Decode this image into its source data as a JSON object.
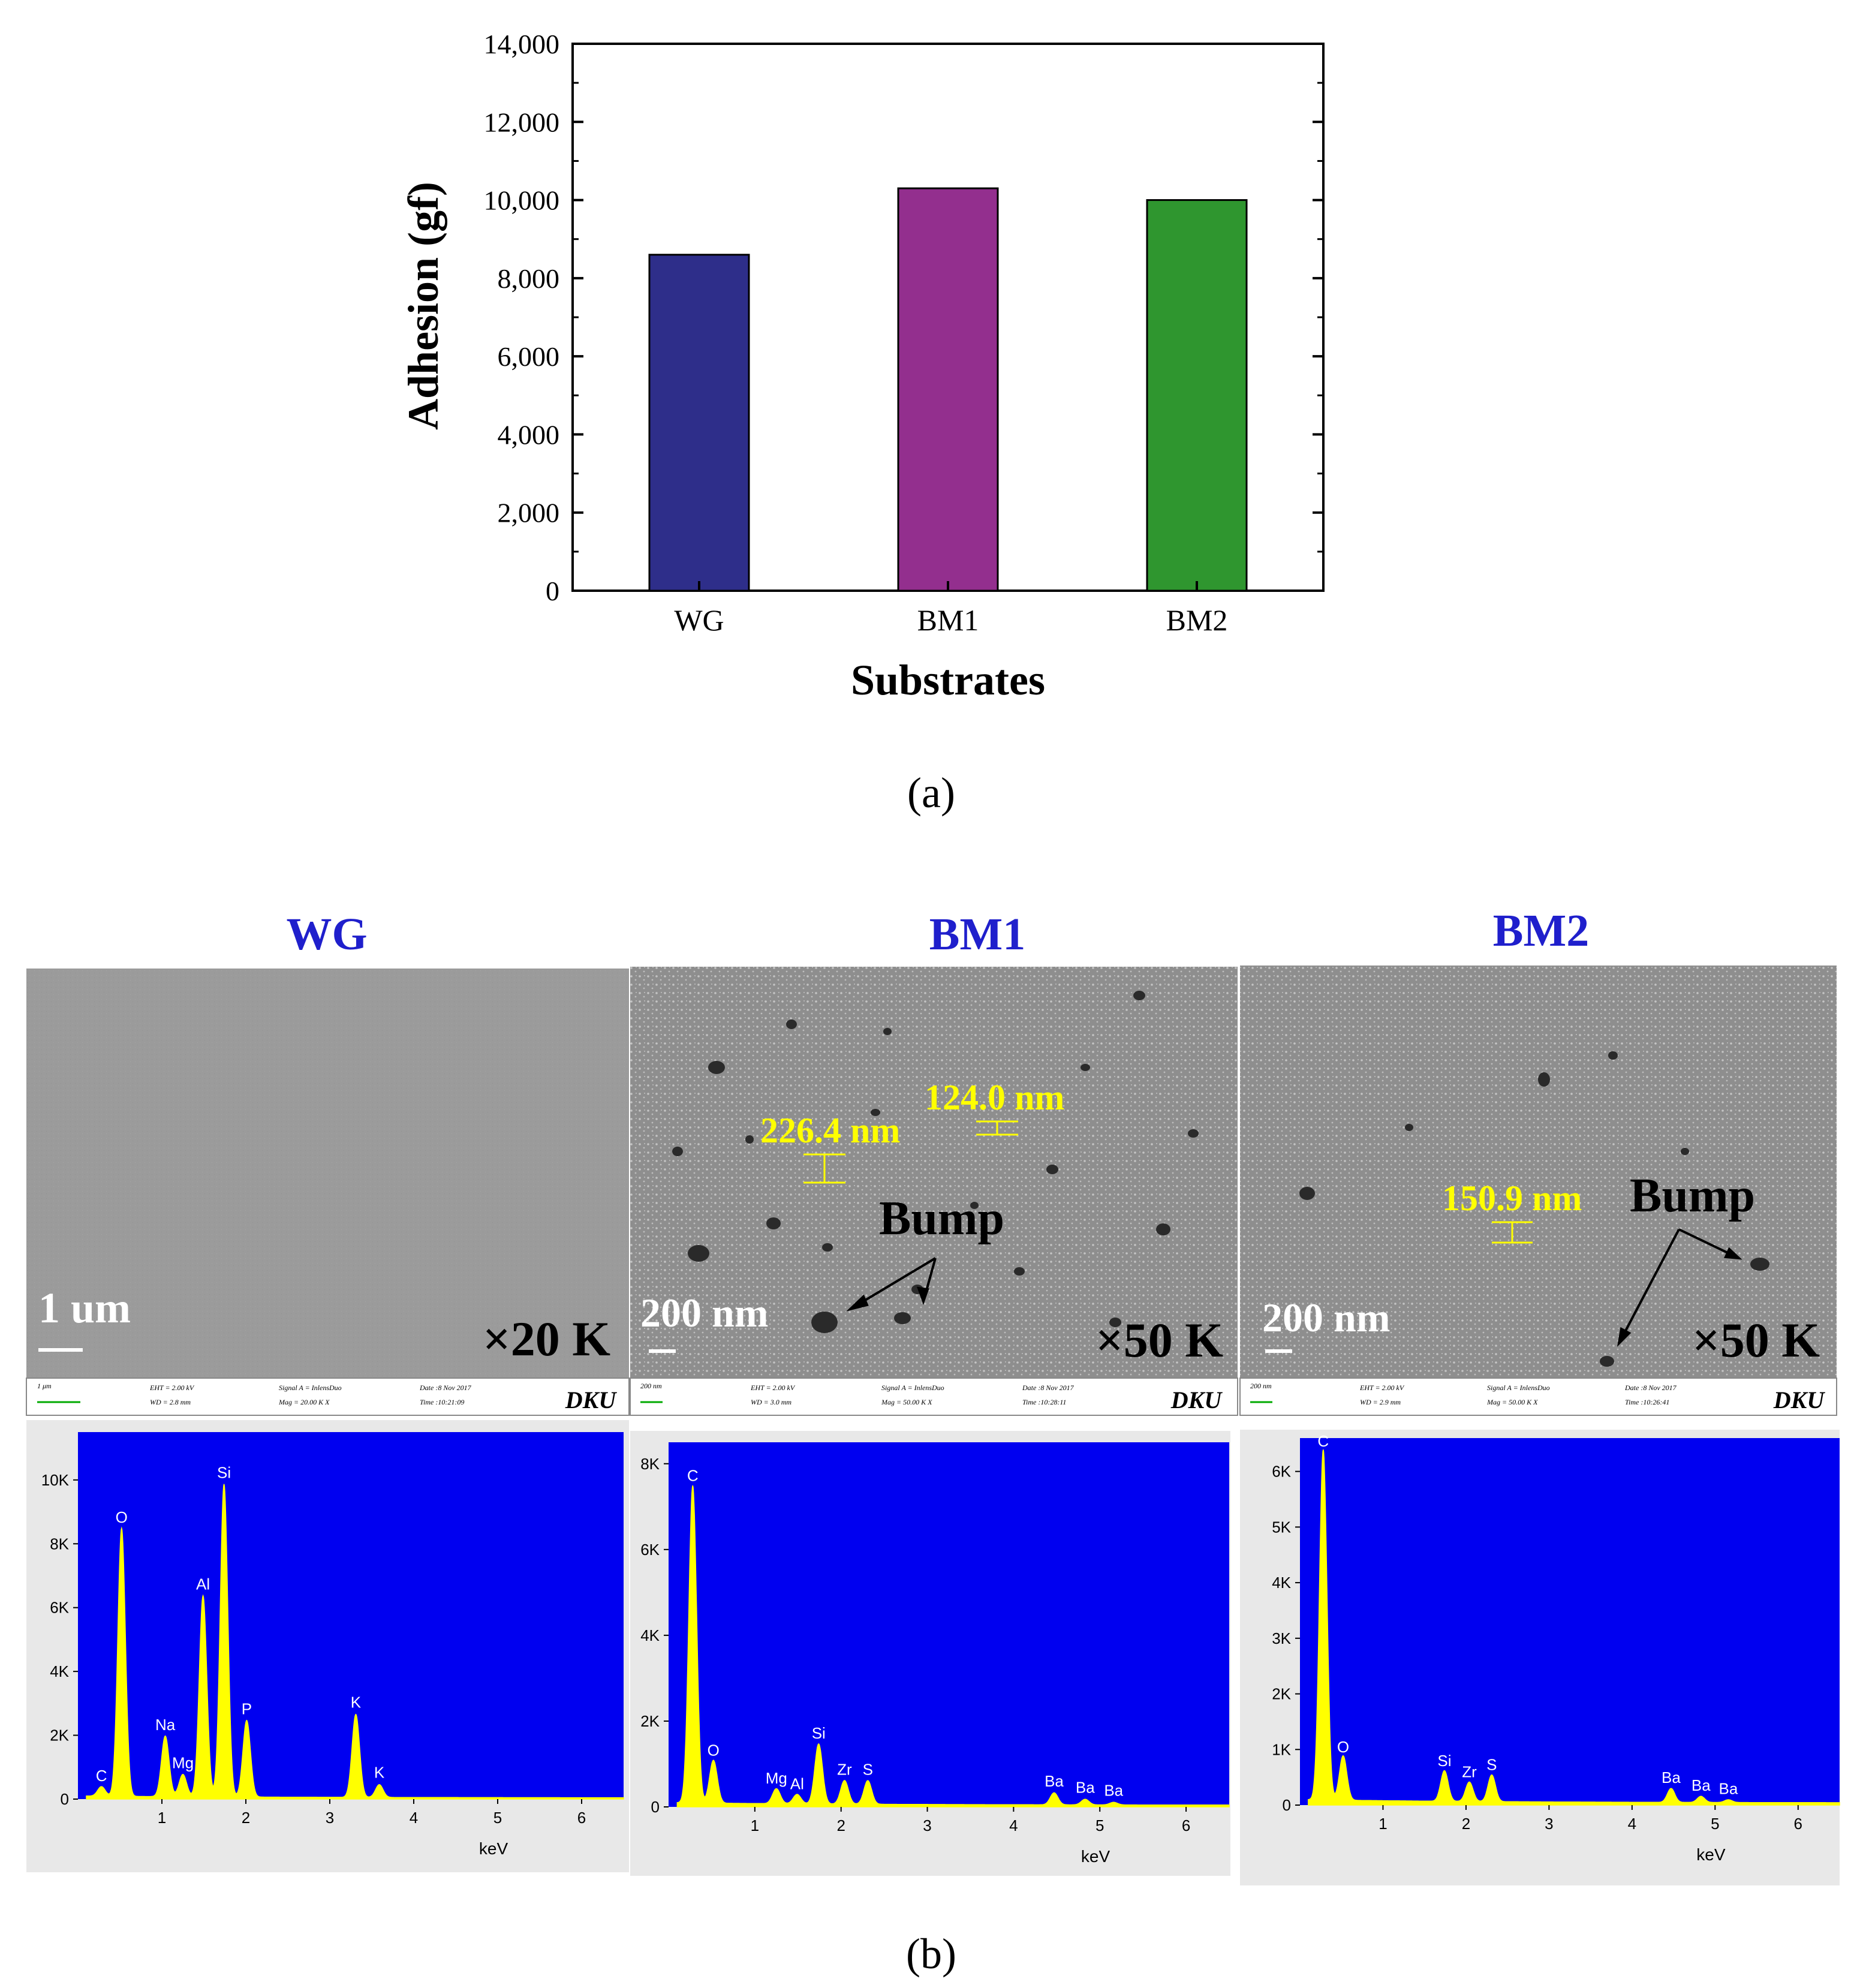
{
  "figure": {
    "caption_a": "(a)",
    "caption_b": "(b)"
  },
  "colors": {
    "wg_bar": "#2e2e8a",
    "bm1_bar": "#932f8e",
    "bm2_bar": "#2f962f",
    "panel_title": "#1f1fcc",
    "edx_bg": "#0000f0",
    "edx_trace": "#ffff00",
    "sem_label": "#ffff00"
  },
  "chart_data": [
    {
      "type": "bar",
      "title": "",
      "xlabel": "Substrates",
      "ylabel": "Adhesion (gf)",
      "categories": [
        "WG",
        "BM1",
        "BM2"
      ],
      "values": [
        8600,
        10300,
        10000
      ],
      "ylim": [
        0,
        14000
      ],
      "yticks": [
        0,
        2000,
        4000,
        6000,
        8000,
        10000,
        12000,
        14000
      ],
      "ytick_labels": [
        "0",
        "2,000",
        "4,000",
        "6,000",
        "8,000",
        "10,000",
        "12,000",
        "14,000"
      ],
      "grid": false
    },
    {
      "type": "line",
      "title": "WG",
      "xlabel": "keV",
      "xlim": [
        0,
        6.5
      ],
      "ylim": [
        0,
        11500
      ],
      "xtick_labels": [
        "1",
        "2",
        "3",
        "4",
        "5",
        "6"
      ],
      "ytick_labels": [
        "0",
        "2K",
        "4K",
        "6K",
        "8K",
        "10K"
      ],
      "peaks": [
        {
          "element": "C",
          "energy": 0.28,
          "counts": 300
        },
        {
          "element": "O",
          "energy": 0.52,
          "counts": 8400
        },
        {
          "element": "Na",
          "energy": 1.04,
          "counts": 1900
        },
        {
          "element": "Mg",
          "energy": 1.25,
          "counts": 700
        },
        {
          "element": "Al",
          "energy": 1.49,
          "counts": 6300
        },
        {
          "element": "Si",
          "energy": 1.74,
          "counts": 9800
        },
        {
          "element": "P",
          "energy": 2.01,
          "counts": 2400
        },
        {
          "element": "K",
          "energy": 3.31,
          "counts": 2600
        },
        {
          "element": "K",
          "energy": 3.59,
          "counts": 400
        }
      ]
    },
    {
      "type": "line",
      "title": "BM1",
      "xlabel": "keV",
      "xlim": [
        0,
        6.5
      ],
      "ylim": [
        0,
        8500
      ],
      "xtick_labels": [
        "1",
        "2",
        "3",
        "4",
        "5",
        "6"
      ],
      "ytick_labels": [
        "0",
        "2K",
        "4K",
        "6K",
        "8K"
      ],
      "peaks": [
        {
          "element": "C",
          "energy": 0.28,
          "counts": 7400
        },
        {
          "element": "O",
          "energy": 0.52,
          "counts": 1000
        },
        {
          "element": "Mg",
          "energy": 1.25,
          "counts": 350
        },
        {
          "element": "Al",
          "energy": 1.49,
          "counts": 220
        },
        {
          "element": "Si",
          "energy": 1.74,
          "counts": 1400
        },
        {
          "element": "Zr",
          "energy": 2.04,
          "counts": 550
        },
        {
          "element": "S",
          "energy": 2.31,
          "counts": 550
        },
        {
          "element": "Ba",
          "energy": 4.47,
          "counts": 280
        },
        {
          "element": "Ba",
          "energy": 4.83,
          "counts": 130
        },
        {
          "element": "Ba",
          "energy": 5.16,
          "counts": 60
        }
      ]
    },
    {
      "type": "line",
      "title": "BM2",
      "xlabel": "keV",
      "xlim": [
        0,
        6.5
      ],
      "ylim": [
        0,
        6600
      ],
      "xtick_labels": [
        "1",
        "2",
        "3",
        "4",
        "5",
        "6"
      ],
      "ytick_labels": [
        "0",
        "1K",
        "2K",
        "3K",
        "4K",
        "5K",
        "6K"
      ],
      "peaks": [
        {
          "element": "C",
          "energy": 0.28,
          "counts": 6300
        },
        {
          "element": "O",
          "energy": 0.52,
          "counts": 800
        },
        {
          "element": "Si",
          "energy": 1.74,
          "counts": 550
        },
        {
          "element": "Zr",
          "energy": 2.04,
          "counts": 350
        },
        {
          "element": "S",
          "energy": 2.31,
          "counts": 480
        },
        {
          "element": "Ba",
          "energy": 4.47,
          "counts": 250
        },
        {
          "element": "Ba",
          "energy": 4.83,
          "counts": 110
        },
        {
          "element": "Ba",
          "energy": 5.16,
          "counts": 50
        }
      ]
    }
  ],
  "sem_panels": [
    {
      "title": "WG",
      "scale_label": "1 um",
      "magnification": "×20 K",
      "annotations": [],
      "bump_label": "",
      "info": {
        "scale": "1 μm",
        "eht": "EHT = 2.00 kV",
        "wd": "WD = 2.8 mm",
        "signal": "Signal A = InlensDuo",
        "mag": "Mag = 20.00 K X",
        "date": "Date :8 Nov 2017",
        "time": "Time :10:21:09",
        "logo": "DKU"
      }
    },
    {
      "title": "BM1",
      "scale_label": "200 nm",
      "magnification": "×50 K",
      "annotations": [
        "226.4 nm",
        "124.0 nm"
      ],
      "bump_label": "Bump",
      "info": {
        "scale": "200 nm",
        "eht": "EHT = 2.00 kV",
        "wd": "WD = 3.0 mm",
        "signal": "Signal A = InlensDuo",
        "mag": "Mag = 50.00 K X",
        "date": "Date :8 Nov 2017",
        "time": "Time :10:28:11",
        "logo": "DKU"
      }
    },
    {
      "title": "BM2",
      "scale_label": "200 nm",
      "magnification": "×50 K",
      "annotations": [
        "150.9 nm"
      ],
      "bump_label": "Bump",
      "info": {
        "scale": "200 nm",
        "eht": "EHT = 2.00 kV",
        "wd": "WD = 2.9 mm",
        "signal": "Signal A = InlensDuo",
        "mag": "Mag = 50.00 K X",
        "date": "Date :8 Nov 2017",
        "time": "Time :10:26:41",
        "logo": "DKU"
      }
    }
  ]
}
